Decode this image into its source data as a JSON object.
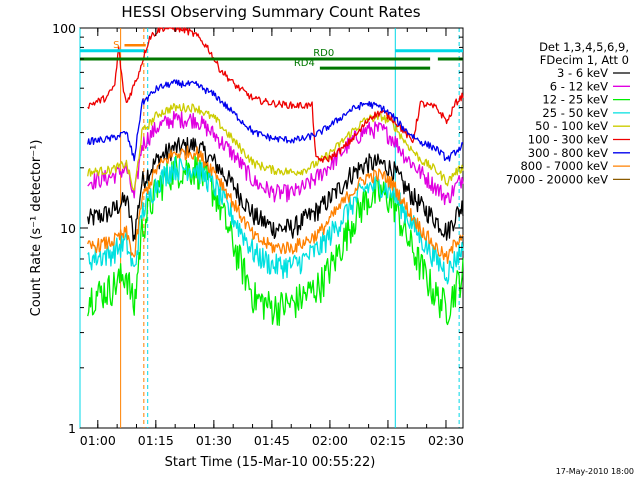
{
  "chart_data": {
    "type": "line",
    "title": "HESSI Observing Summary Count Rates",
    "xlabel": "Start Time (15-Mar-10 00:55:22)",
    "ylabel": "Count Rate (s⁻¹ detector⁻¹)",
    "y_scale": "log",
    "ylim": [
      1,
      100
    ],
    "x_unit": "minutes after 00:55:22 UT",
    "xlim": [
      0,
      99
    ],
    "x_ticks": [
      {
        "label": "01:00",
        "value": 4.6
      },
      {
        "label": "01:15",
        "value": 19.6
      },
      {
        "label": "01:30",
        "value": 34.6
      },
      {
        "label": "01:45",
        "value": 49.6
      },
      {
        "label": "02:00",
        "value": 64.6
      },
      {
        "label": "02:15",
        "value": 79.6
      },
      {
        "label": "02:30",
        "value": 94.6
      }
    ],
    "y_ticks": [
      {
        "label": "1",
        "value": 1
      },
      {
        "label": "10",
        "value": 10
      },
      {
        "label": "100",
        "value": 100
      }
    ],
    "legend": {
      "placement": "right",
      "header": [
        "Det 1,3,4,5,6,9,",
        "FDecim 1, Att 0"
      ]
    },
    "series": [
      {
        "name": "3 - 6 keV",
        "color": "#000000",
        "noise": 0.12,
        "x": [
          2,
          8,
          12,
          14,
          16,
          20,
          24,
          30,
          35,
          40,
          45,
          50,
          55,
          58,
          62,
          66,
          70,
          74,
          78,
          81,
          84,
          88,
          92,
          95,
          97,
          99
        ],
        "y": [
          11,
          12,
          14,
          9,
          17,
          22,
          25,
          26,
          21,
          16,
          11.5,
          10,
          10,
          11,
          12.5,
          15,
          18.5,
          21,
          21,
          19.5,
          16,
          13,
          11,
          9.5,
          11.5,
          13
        ]
      },
      {
        "name": "6 - 12 keV",
        "color": "#e000e0",
        "noise": 0.1,
        "x": [
          2,
          8,
          12,
          14,
          16,
          20,
          24,
          30,
          35,
          40,
          45,
          50,
          55,
          58,
          62,
          66,
          70,
          74,
          78,
          81,
          84,
          88,
          92,
          95,
          97,
          99
        ],
        "y": [
          17,
          18,
          20,
          14,
          26,
          32,
          35,
          35,
          29,
          23,
          17,
          15,
          15,
          16,
          18.5,
          22,
          27,
          31,
          31,
          28,
          23,
          19,
          16,
          14,
          16,
          18
        ]
      },
      {
        "name": "12 - 25 keV",
        "color": "#00ee00",
        "noise": 0.2,
        "x": [
          2,
          8,
          12,
          14,
          16,
          20,
          24,
          30,
          35,
          40,
          45,
          50,
          55,
          58,
          62,
          66,
          70,
          74,
          78,
          81,
          84,
          88,
          92,
          95,
          97,
          99
        ],
        "y": [
          4.5,
          5,
          6,
          4,
          10,
          16,
          19.5,
          20,
          15,
          8,
          4.5,
          4,
          4.2,
          4.6,
          5.2,
          7,
          10.5,
          14,
          15,
          13.5,
          9.5,
          6.5,
          4.6,
          4,
          5,
          6
        ]
      },
      {
        "name": "25 - 50 keV",
        "color": "#00e0e0",
        "noise": 0.14,
        "x": [
          2,
          8,
          12,
          14,
          16,
          20,
          24,
          30,
          35,
          40,
          45,
          50,
          55,
          58,
          62,
          66,
          70,
          74,
          78,
          81,
          84,
          88,
          92,
          95,
          97,
          99
        ],
        "y": [
          7,
          7.5,
          8.5,
          6,
          12,
          17,
          20,
          20,
          16,
          11,
          7.5,
          6.5,
          6.5,
          7,
          8,
          10,
          13,
          16,
          16.5,
          15,
          12,
          9,
          7,
          6,
          7,
          8
        ]
      },
      {
        "name": "50 - 100 keV",
        "color": "#cccc00",
        "noise": 0.05,
        "x": [
          2,
          8,
          12,
          14,
          16,
          20,
          24,
          30,
          35,
          40,
          45,
          50,
          55,
          58,
          62,
          66,
          70,
          74,
          78,
          81,
          84,
          88,
          92,
          95,
          97,
          99
        ],
        "y": [
          19,
          19.5,
          21,
          15,
          30,
          37,
          40,
          40,
          35,
          27,
          21,
          19.5,
          19,
          19.5,
          21.5,
          25,
          30,
          35,
          36,
          33,
          27,
          22,
          19.5,
          17,
          19,
          20
        ]
      },
      {
        "name": "100 - 300 keV",
        "color": "#ee0000",
        "noise": 0.04,
        "x": [
          2,
          7,
          9,
          10,
          11,
          12,
          15,
          18,
          21,
          24,
          27,
          30,
          33,
          36,
          40,
          45,
          50,
          55,
          60,
          61,
          64,
          68,
          72,
          75,
          78,
          81,
          84,
          86,
          88,
          92,
          95,
          97,
          99
        ],
        "y": [
          41,
          45,
          52,
          80,
          52,
          42,
          58,
          90,
          100,
          100,
          98,
          92,
          80,
          63,
          52,
          44,
          42,
          41,
          41,
          22,
          22,
          25,
          30,
          36,
          38,
          35,
          30,
          27,
          42,
          40,
          34,
          42,
          46
        ]
      },
      {
        "name": "300 - 800 keV",
        "color": "#0000ee",
        "noise": 0.04,
        "x": [
          2,
          8,
          12,
          14,
          16,
          20,
          24,
          30,
          35,
          40,
          45,
          50,
          55,
          58,
          62,
          66,
          70,
          74,
          78,
          81,
          84,
          88,
          92,
          95,
          97,
          99
        ],
        "y": [
          27,
          28,
          30,
          22,
          42,
          50,
          53,
          52,
          46,
          37,
          30,
          28,
          27.5,
          28,
          30,
          34,
          39,
          42,
          40,
          36,
          31,
          27,
          25,
          22,
          24,
          26
        ]
      },
      {
        "name": "800 - 7000 keV",
        "color": "#ff8000",
        "noise": 0.08,
        "x": [
          2,
          8,
          12,
          14,
          16,
          20,
          24,
          30,
          35,
          40,
          45,
          50,
          55,
          58,
          62,
          66,
          70,
          74,
          78,
          81,
          84,
          88,
          92,
          95,
          97,
          99
        ],
        "y": [
          8,
          8.5,
          9.5,
          7,
          14,
          20,
          23.5,
          24,
          19,
          13,
          9,
          8,
          8,
          8.5,
          9.5,
          12,
          15,
          18,
          18.5,
          16.5,
          13,
          10,
          8,
          7,
          8.5,
          9.5
        ]
      },
      {
        "name": "7000 - 20000 keV",
        "color": "#8b5a00",
        "noise": 0,
        "x": [],
        "y": []
      }
    ],
    "markers": {
      "solid_cyan_x": [
        0,
        81.5
      ],
      "dashed_cyan_x": [
        17.5,
        98
      ],
      "solid_orange_x": [
        10.5
      ],
      "dashed_orange_x": [
        16.5
      ],
      "cyan_bars": [
        {
          "x": [
            0,
            16.5
          ],
          "y": 77
        },
        {
          "x": [
            81.5,
            99
          ],
          "y": 77
        }
      ],
      "green_bars": [
        {
          "x": [
            0,
            90.5
          ],
          "y": 70,
          "label": "RD0"
        },
        {
          "x": [
            62,
            90.5
          ],
          "y": 63,
          "label": "RD4"
        },
        {
          "x": [
            92.5,
            99
          ],
          "y": 70,
          "label": ""
        }
      ],
      "orange_bar": {
        "x": [
          11.5,
          17
        ],
        "y": 82,
        "label": "S"
      }
    },
    "footer_date": "17-May-2010 18:00"
  }
}
